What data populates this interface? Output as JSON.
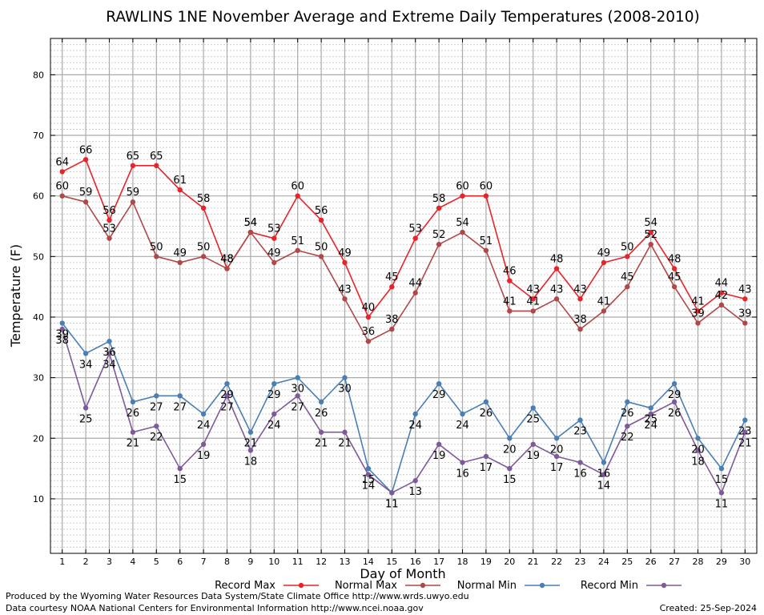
{
  "chart_data": {
    "type": "line",
    "title": "RAWLINS 1NE November Average and Extreme Daily Temperatures (2008-2010)",
    "xlabel": "Day of Month",
    "ylabel": "Temperature (F)",
    "x": [
      1,
      2,
      3,
      4,
      5,
      6,
      7,
      8,
      9,
      10,
      11,
      12,
      13,
      14,
      15,
      16,
      17,
      18,
      19,
      20,
      21,
      22,
      23,
      24,
      25,
      26,
      27,
      28,
      29,
      30
    ],
    "x_tick_labels": [
      "1",
      "2",
      "3",
      "4",
      "5",
      "6",
      "7",
      "8",
      "9",
      "10",
      "11",
      "12",
      "13",
      "14",
      "15",
      "16",
      "17",
      "18",
      "19",
      "20",
      "21",
      "22",
      "23",
      "24",
      "25",
      "26",
      "27",
      "28",
      "29",
      "30"
    ],
    "xlim": [
      0.5,
      30.5
    ],
    "ylim": [
      1,
      86
    ],
    "y_ticks": [
      10,
      20,
      30,
      40,
      50,
      60,
      70,
      80
    ],
    "y_tick_labels": [
      "10",
      "20",
      "30",
      "40",
      "50",
      "60",
      "70",
      "80"
    ],
    "grid": true,
    "legend_position": "bottom",
    "series": [
      {
        "name": "Record Max",
        "color": "#e8232a",
        "values": [
          64,
          66,
          56,
          65,
          65,
          61,
          58,
          48,
          54,
          53,
          60,
          56,
          49,
          40,
          45,
          53,
          58,
          60,
          60,
          46,
          43,
          48,
          43,
          49,
          50,
          54,
          48,
          41,
          44,
          43
        ]
      },
      {
        "name": "Normal Max",
        "color": "#b04848",
        "values": [
          60,
          59,
          53,
          59,
          50,
          49,
          50,
          48,
          54,
          49,
          51,
          50,
          43,
          36,
          38,
          44,
          52,
          54,
          51,
          41,
          41,
          43,
          38,
          41,
          45,
          52,
          45,
          39,
          42,
          39
        ]
      },
      {
        "name": "Normal Min",
        "color": "#4a7fb5",
        "values": [
          39,
          34,
          36,
          26,
          27,
          27,
          24,
          29,
          21,
          29,
          30,
          26,
          30,
          15,
          11,
          24,
          29,
          24,
          26,
          20,
          25,
          20,
          23,
          16,
          26,
          25,
          29,
          20,
          15,
          23
        ]
      },
      {
        "name": "Record Min",
        "color": "#7f5a9a",
        "values": [
          38,
          25,
          34,
          21,
          22,
          15,
          19,
          27,
          18,
          24,
          27,
          21,
          21,
          14,
          11,
          13,
          19,
          16,
          17,
          15,
          19,
          17,
          16,
          14,
          22,
          24,
          26,
          18,
          11,
          21
        ]
      }
    ]
  },
  "footer": {
    "produced_by": "Produced by the Wyoming Water Resources Data System/State Climate Office http://www.wrds.uwyo.edu",
    "courtesy": "Data courtesy NOAA National Centers for Environmental Information http://www.ncei.noaa.gov",
    "created": "Created: 25-Sep-2024"
  }
}
